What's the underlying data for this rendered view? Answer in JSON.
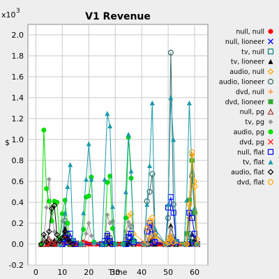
{
  "chart_data": {
    "type": "line",
    "title": "V1 Revenue",
    "xlabel": "Time",
    "ylabel": "$",
    "y_multiplier_label": "x10",
    "y_multiplier_exp": "3",
    "xlim": [
      -3,
      65
    ],
    "ylim": [
      -0.2,
      2.1
    ],
    "x_ticks": [
      0,
      10,
      20,
      30,
      40,
      50,
      60
    ],
    "x_tick_labels": [
      "0",
      "10",
      "20",
      "30",
      "40",
      "50",
      "60"
    ],
    "y_ticks": [
      -0.2,
      0.0,
      0.2,
      0.4,
      0.6,
      0.8,
      1.0,
      1.2,
      1.4,
      1.6,
      1.8,
      2.0
    ],
    "y_tick_labels": [
      "-0.2",
      "0.0",
      "0.2",
      "0.4",
      "0.6",
      "0.8",
      "1.0",
      "1.2",
      "1.4",
      "1.6",
      "1.8",
      "2.0"
    ],
    "grid": true,
    "legend_position": "right",
    "series": [
      {
        "name": "null, null",
        "color": "#ff0000",
        "marker": "circle-filled",
        "x": [
          2,
          3,
          4,
          5,
          6,
          7,
          8,
          9,
          10,
          11,
          12,
          13,
          14,
          15,
          16,
          17,
          18,
          19,
          20,
          21,
          22,
          23,
          24,
          25,
          26,
          27,
          28,
          29,
          30,
          31,
          32,
          33,
          34,
          35,
          36,
          37,
          38,
          39,
          40,
          41,
          42,
          43,
          44,
          45,
          46,
          47,
          48,
          49,
          50,
          51,
          52,
          53,
          54,
          55,
          56,
          57,
          58,
          59,
          60,
          61
        ],
        "y": [
          0,
          0,
          0,
          0,
          0,
          0,
          0,
          0,
          0.05,
          0.09,
          0.07,
          0.03,
          0,
          0,
          0,
          0,
          0.02,
          0.01,
          0,
          0,
          0,
          0,
          0,
          0,
          0,
          0,
          0,
          0,
          0,
          0,
          0,
          0,
          0,
          0,
          0,
          0,
          0,
          0,
          0,
          0,
          0,
          0,
          0,
          0,
          0,
          0,
          0,
          0,
          0,
          0,
          0,
          0,
          0,
          0,
          0,
          0,
          0,
          0,
          0,
          0
        ]
      },
      {
        "name": "null, lioneer",
        "color": "#0000ff",
        "marker": "x",
        "x": [
          10,
          11,
          12,
          13,
          14,
          15,
          26,
          27,
          28,
          29,
          30,
          36,
          37,
          42,
          43,
          44,
          45,
          50,
          51,
          52,
          53,
          58,
          59,
          60
        ],
        "y": [
          0,
          0.02,
          0.01,
          0,
          0.01,
          0,
          0,
          0.03,
          0.01,
          0,
          0,
          0,
          0.02,
          0,
          0,
          0.03,
          0,
          0,
          0.02,
          0.01,
          0,
          0,
          0.02,
          0
        ]
      },
      {
        "name": "tv, null",
        "color": "#008080",
        "marker": "square-open",
        "x": [
          10,
          11,
          12,
          13,
          26,
          27,
          28,
          29,
          34,
          35,
          36,
          42,
          43,
          44,
          45,
          50,
          51,
          52,
          53,
          58,
          59,
          60
        ],
        "y": [
          0,
          0.02,
          0.01,
          0,
          0,
          0.05,
          0.02,
          0,
          0,
          0.01,
          0.02,
          0,
          0.03,
          0.06,
          0.02,
          0,
          0.06,
          0.03,
          0,
          0.02,
          0.05,
          0.01
        ]
      },
      {
        "name": "tv, lioneer",
        "color": "#000000",
        "marker": "triangle-filled",
        "x": [
          6,
          7,
          8,
          9,
          10,
          11,
          12,
          13,
          26,
          27,
          28,
          29,
          34,
          35,
          36,
          37,
          42,
          43,
          44,
          45,
          50,
          51,
          52,
          53,
          58,
          59,
          60,
          61
        ],
        "y": [
          0,
          0.04,
          0.02,
          0,
          0.05,
          0.15,
          0.08,
          0,
          0,
          0.03,
          0.01,
          0,
          0,
          0.02,
          0.05,
          0,
          0,
          0.04,
          0.06,
          0,
          0,
          0.18,
          0.08,
          0,
          0,
          0.1,
          0.05,
          0
        ]
      },
      {
        "name": "audio, null",
        "color": "#ffa500",
        "marker": "diamond-open",
        "x": [
          26,
          27,
          28,
          29,
          33,
          34,
          35,
          36,
          37,
          42,
          43,
          44,
          45,
          49,
          50,
          51,
          52,
          57,
          58,
          59,
          60,
          61
        ],
        "y": [
          0,
          0.08,
          0.04,
          0,
          0,
          0.03,
          0.27,
          0.29,
          0.1,
          0,
          0.07,
          0.19,
          0.05,
          0,
          0.06,
          0.08,
          0.02,
          0,
          0.25,
          0.85,
          0.6,
          0.05
        ]
      },
      {
        "name": "audio, lioneer",
        "color": "#336666",
        "marker": "circle-open",
        "x": [
          9,
          10,
          11,
          12,
          13,
          26,
          27,
          28,
          29,
          33,
          34,
          35,
          36,
          37,
          41,
          42,
          43,
          44,
          45,
          49,
          50,
          51,
          52,
          53,
          57,
          58,
          59,
          60,
          61
        ],
        "y": [
          0,
          0.05,
          0.22,
          0.1,
          0,
          0,
          0.1,
          0.06,
          0,
          0,
          0.04,
          0.1,
          0.17,
          0.03,
          0,
          0.41,
          0.5,
          0.67,
          0.1,
          0,
          0.25,
          1.83,
          0.38,
          0.02,
          0,
          0.1,
          0.65,
          0.3,
          0
        ]
      },
      {
        "name": "dvd, null",
        "color": "#ff8c3c",
        "marker": "plus",
        "x": [
          42,
          43,
          44,
          45,
          50,
          51,
          52,
          53,
          57,
          58,
          59,
          60,
          61
        ],
        "y": [
          0,
          0.05,
          0.18,
          0.02,
          0,
          0.08,
          0.04,
          0,
          0,
          0.4,
          0.85,
          0.3,
          0
        ]
      },
      {
        "name": "dvd, lioneer",
        "color": "#33aa33",
        "marker": "square-filled",
        "x": [
          56,
          57,
          58,
          59,
          60,
          61
        ],
        "y": [
          0,
          0.1,
          0.42,
          0.8,
          0.3,
          0
        ]
      },
      {
        "name": "null, pg",
        "color": "#993333",
        "marker": "triangle-open",
        "x": [
          2,
          3,
          4,
          5,
          6,
          7,
          8,
          9,
          10,
          11,
          12,
          13,
          14,
          15,
          16,
          17,
          18
        ],
        "y": [
          0,
          0.02,
          0,
          0.05,
          0.02,
          0,
          0.05,
          0.02,
          0,
          0.1,
          0.07,
          0.02,
          0,
          0.02,
          0.01,
          0,
          0
        ]
      },
      {
        "name": "tv, pg",
        "color": "#999999",
        "marker": "diamond-filled",
        "x": [
          3,
          4,
          5,
          6,
          7,
          8,
          9,
          10,
          11,
          12,
          13,
          18,
          19,
          20,
          21,
          22,
          26,
          27,
          28,
          29,
          30,
          33,
          34,
          35,
          36,
          37,
          42,
          43,
          44,
          45,
          50,
          51,
          52,
          53
        ],
        "y": [
          0,
          0.35,
          0.62,
          0.3,
          0.12,
          0.05,
          0,
          0.22,
          0.28,
          0.1,
          0,
          0,
          0.1,
          0.2,
          0.08,
          0,
          0,
          0.28,
          0.2,
          0.22,
          0,
          0,
          0.12,
          0.21,
          0.18,
          0,
          0,
          0.1,
          0.2,
          0.04,
          0,
          0.15,
          0.08,
          0
        ]
      },
      {
        "name": "audio, pg",
        "color": "#00dd00",
        "marker": "circle-filled",
        "x": [
          2,
          3,
          4,
          5,
          6,
          7,
          8,
          9,
          10,
          11,
          12,
          13,
          17,
          18,
          19,
          20,
          21,
          22,
          26,
          27,
          28,
          29,
          30,
          33,
          34,
          35,
          36,
          37
        ],
        "y": [
          0,
          1.09,
          0.53,
          0.41,
          0.22,
          0.41,
          0.4,
          0.05,
          0.29,
          0.42,
          0.2,
          0,
          0,
          0.14,
          0.45,
          0.46,
          0.64,
          0.02,
          0,
          0.59,
          0.65,
          0.15,
          0,
          0,
          0.25,
          1.02,
          0.63,
          0.04
        ]
      },
      {
        "name": "dvd, pg",
        "color": "#ff2020",
        "marker": "x",
        "x": [
          9,
          10,
          11,
          12,
          13,
          14,
          15
        ],
        "y": [
          0,
          0.03,
          0.05,
          0.02,
          0,
          0.01,
          0
        ]
      },
      {
        "name": "null, flat",
        "color": "#0000ff",
        "marker": "square-open",
        "x": [
          10,
          11,
          12,
          13,
          14,
          15,
          25,
          26,
          27,
          28,
          29,
          34,
          35,
          36,
          37,
          41,
          42,
          43,
          44,
          45,
          49,
          50,
          51,
          52,
          53,
          57,
          58,
          59,
          60,
          61
        ],
        "y": [
          0,
          0.06,
          0.02,
          0.1,
          0.03,
          0,
          0,
          0.03,
          0.08,
          0.03,
          0,
          0,
          0.07,
          0.1,
          0.02,
          0,
          0.12,
          0.2,
          0.14,
          0.02,
          0,
          0.35,
          0.45,
          0.3,
          0.02,
          0,
          0.3,
          0.25,
          0.1,
          0
        ]
      },
      {
        "name": "tv, flat",
        "color": "#1a9aaa",
        "marker": "triangle-filled",
        "x": [
          9,
          10,
          11,
          12,
          13,
          14,
          17,
          18,
          19,
          20,
          21,
          22,
          25,
          26,
          27,
          28,
          29,
          30,
          33,
          34,
          35,
          36,
          37,
          41,
          42,
          43,
          44,
          45,
          49,
          50,
          51,
          52,
          53,
          56,
          57,
          58,
          59,
          60,
          61
        ],
        "y": [
          0,
          0.05,
          0.3,
          0.55,
          0.76,
          0.05,
          0,
          0.3,
          0.62,
          0.96,
          0.62,
          0.02,
          0,
          0.62,
          1.25,
          1.13,
          0.36,
          0,
          0,
          0.5,
          1.05,
          0.7,
          0.03,
          0,
          0.38,
          0.75,
          1.35,
          0.15,
          0,
          0.38,
          1.4,
          1.0,
          0.04,
          0,
          0.42,
          1.35,
          0.7,
          0.35,
          0
        ]
      },
      {
        "name": "audio, flat",
        "color": "#000000",
        "marker": "diamond-open",
        "x": [
          2,
          3,
          4,
          5,
          6,
          7,
          8,
          9,
          10,
          11,
          12,
          13,
          14
        ],
        "y": [
          0,
          0.09,
          0.02,
          0.12,
          0.34,
          0.37,
          0.09,
          0.03,
          0.06,
          0.12,
          0.05,
          0.02,
          0
        ]
      },
      {
        "name": "dvd, flat",
        "color": "#ffa500",
        "marker": "circle-open",
        "x": [
          41,
          42,
          43,
          44,
          45,
          49,
          50,
          51,
          52,
          57,
          58,
          59,
          60,
          61
        ],
        "y": [
          0,
          0.15,
          0.22,
          0.25,
          0.08,
          0,
          0.02,
          0.05,
          0.02,
          0,
          0.38,
          0.88,
          0.55,
          0
        ]
      }
    ]
  }
}
